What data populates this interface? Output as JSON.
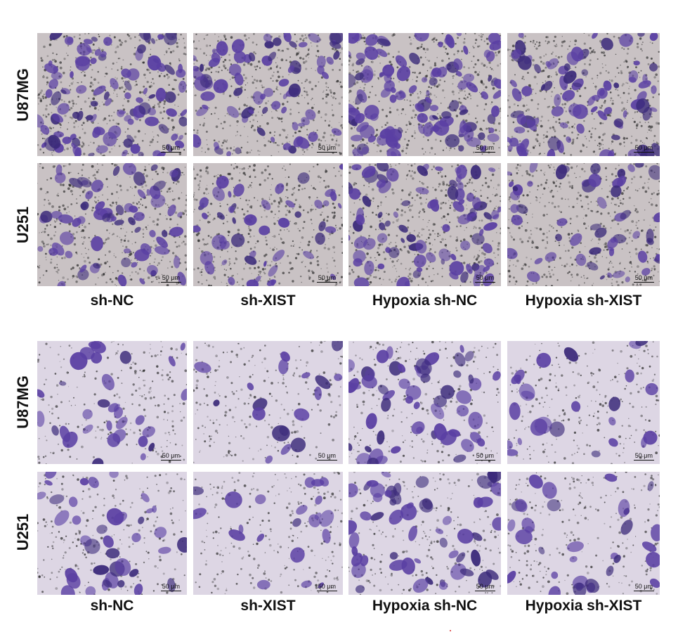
{
  "blocks": [
    {
      "row_labels": [
        "U87MG",
        "U251"
      ],
      "col_labels": [
        "sh-NC",
        "sh-XIST",
        "Hypoxia sh-NC",
        "Hypoxia sh-XIST"
      ],
      "stain": "dense"
    },
    {
      "row_labels": [
        "U87MG",
        "U251"
      ],
      "col_labels": [
        "sh-NC",
        "sh-XIST",
        "Hypoxia sh-NC",
        "Hypoxia sh-XIST"
      ],
      "stain": "sparse"
    }
  ],
  "scale_bar_label": "50 μm",
  "colors": {
    "dense_background": "#c9c2c4",
    "sparse_background": "#ddd6e4",
    "cell_stain": "#5a3fa3",
    "cell_stain_dark": "#3b2a7a",
    "pore_dot": "#2a2a2a"
  },
  "cell_density": {
    "block1": [
      [
        0.75,
        0.55,
        0.85,
        0.6
      ],
      [
        0.5,
        0.35,
        0.65,
        0.4
      ]
    ],
    "block2": [
      [
        0.45,
        0.25,
        0.8,
        0.35
      ],
      [
        0.55,
        0.3,
        0.8,
        0.45
      ]
    ]
  }
}
